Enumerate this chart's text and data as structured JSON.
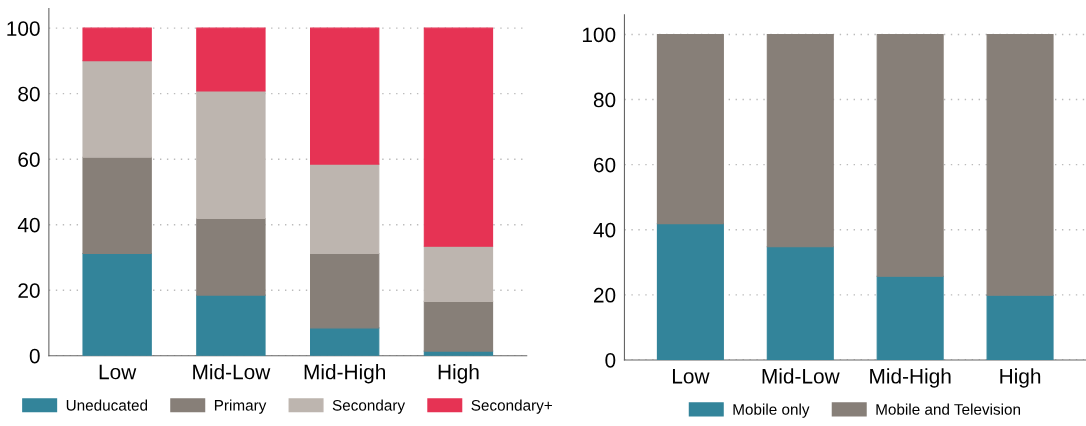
{
  "chart_data": [
    {
      "type": "bar",
      "stacked": true,
      "categories": [
        "Low",
        "Mid-Low",
        "Mid-High",
        "High"
      ],
      "ylim": [
        0,
        106
      ],
      "yticks": [
        0,
        20,
        40,
        60,
        80,
        100
      ],
      "grid": "y",
      "legend": "bottom",
      "series": [
        {
          "name": "Uneducated",
          "color": "#33849a",
          "values": [
            31.2,
            18.5,
            8.5,
            1.4
          ]
        },
        {
          "name": "Primary",
          "color": "#877f78",
          "values": [
            29.4,
            23.4,
            22.7,
            15.2
          ]
        },
        {
          "name": "Secondary",
          "color": "#bdb5af",
          "values": [
            29.5,
            38.9,
            27.3,
            16.8
          ]
        },
        {
          "name": "Secondary+",
          "color": "#e63354",
          "values": [
            9.9,
            19.2,
            41.5,
            66.6
          ]
        }
      ]
    },
    {
      "type": "bar",
      "stacked": true,
      "categories": [
        "Low",
        "Mid-Low",
        "Mid-High",
        "High"
      ],
      "ylim": [
        0,
        106
      ],
      "yticks": [
        0,
        20,
        40,
        60,
        80,
        100
      ],
      "grid": "y",
      "legend": "bottom",
      "series": [
        {
          "name": "Mobile only",
          "color": "#33849a",
          "values": [
            41.9,
            34.8,
            25.7,
            19.9
          ]
        },
        {
          "name": "Mobile and Television",
          "color": "#877f78",
          "values": [
            58.1,
            65.2,
            74.3,
            80.1
          ]
        }
      ]
    }
  ]
}
